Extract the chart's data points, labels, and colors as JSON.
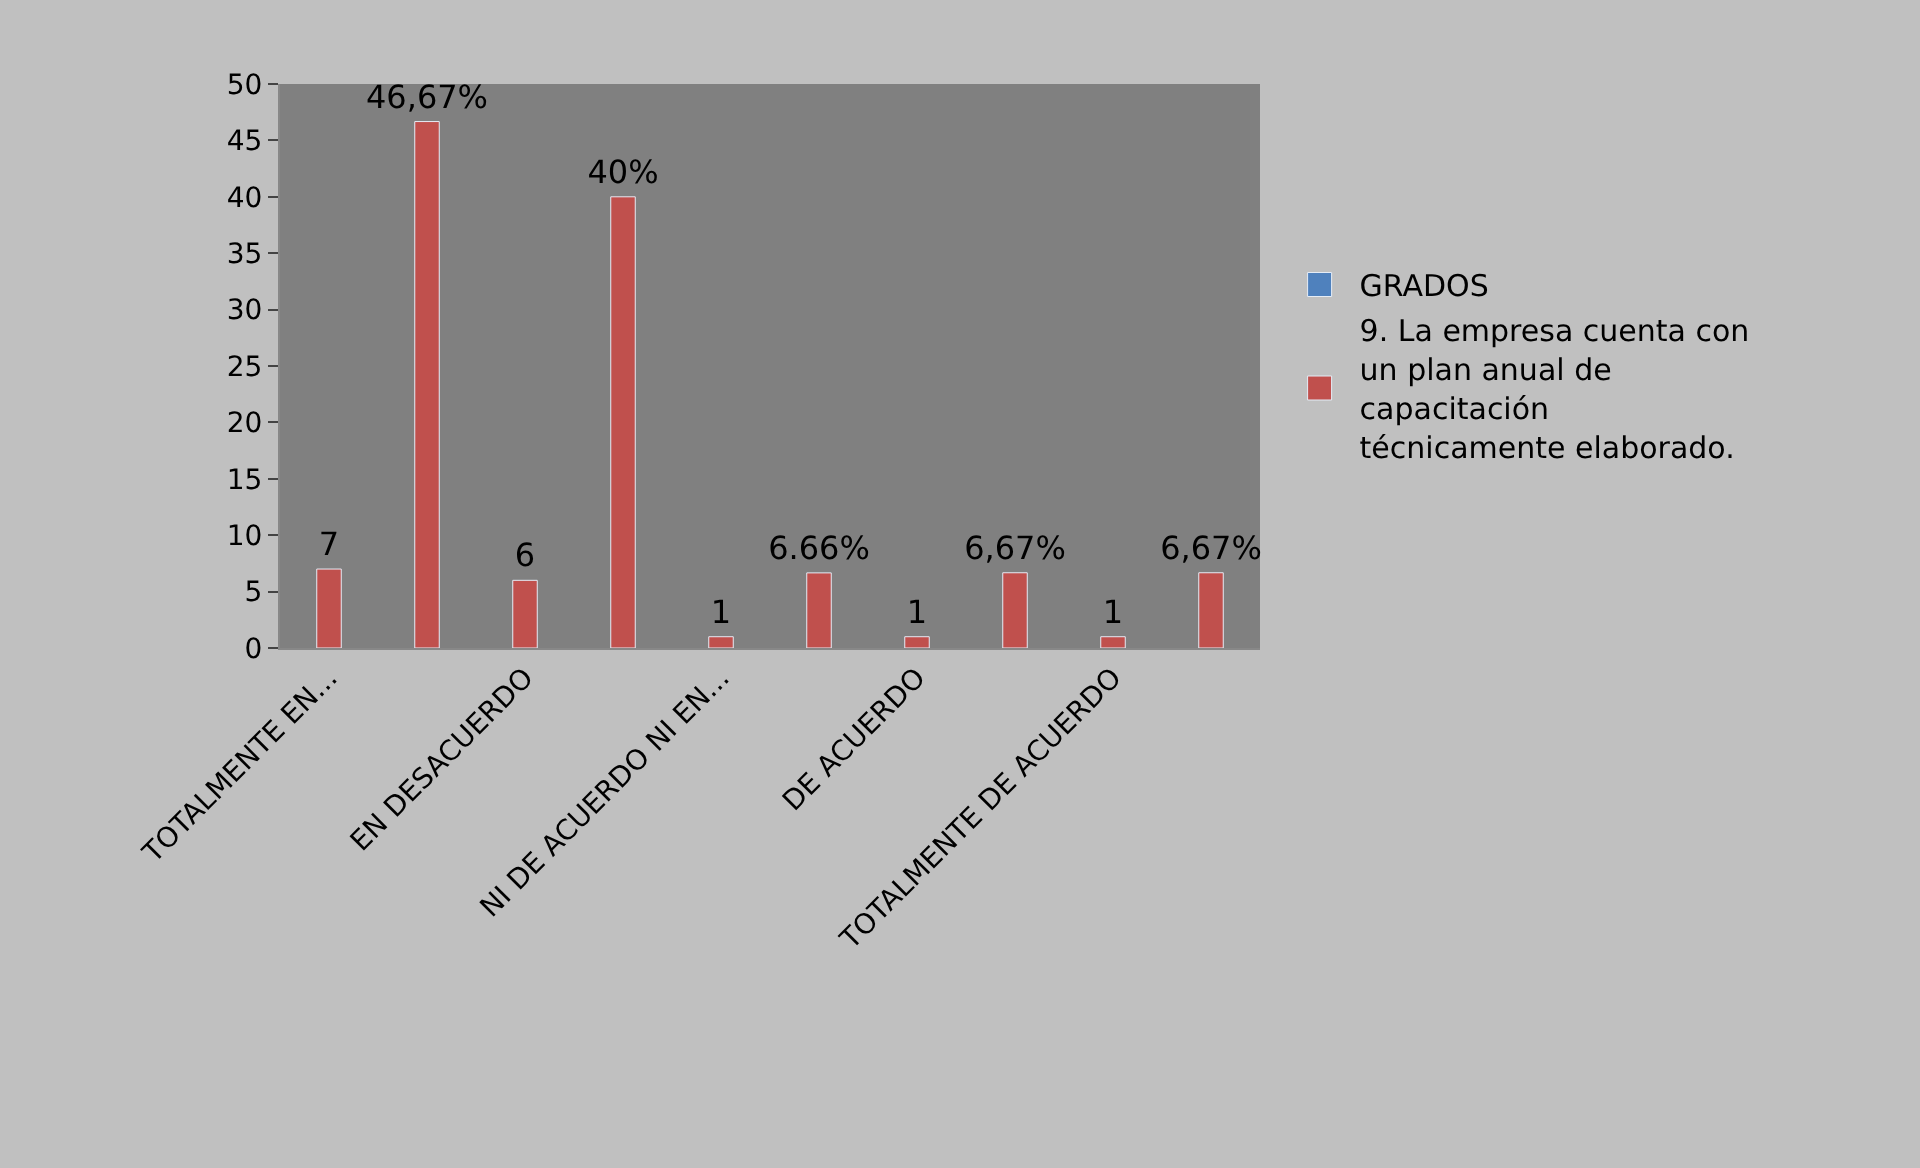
{
  "chart_data": {
    "type": "bar",
    "categories": [
      "TOTALMENTE EN...",
      null,
      "EN DESACUERDO",
      null,
      "NI DE ACUERDO NI EN...",
      null,
      "DE ACUERDO",
      null,
      "TOTALMENTE DE ACUERDO",
      null
    ],
    "series": [
      {
        "name": "GRADOS",
        "color": "#4f81bd",
        "values": [
          null,
          null,
          null,
          null,
          null,
          null,
          null,
          null,
          null,
          null
        ]
      },
      {
        "name": "9. La empresa cuenta con un plan anual de capacitación técnicamente elaborado.",
        "color": "#c0504d",
        "values": [
          7,
          46.67,
          6,
          40,
          1,
          6.66,
          1,
          6.67,
          1,
          6.67
        ],
        "value_labels": [
          "7",
          "46,67%",
          "6",
          "40%",
          "1",
          "6.66%",
          "1",
          "6,67%",
          "1",
          "6,67%"
        ]
      }
    ],
    "ylim": [
      0,
      50
    ],
    "yticks": [
      0,
      5,
      10,
      15,
      20,
      25,
      30,
      35,
      40,
      45,
      50
    ],
    "legend": "right",
    "grid": false
  }
}
